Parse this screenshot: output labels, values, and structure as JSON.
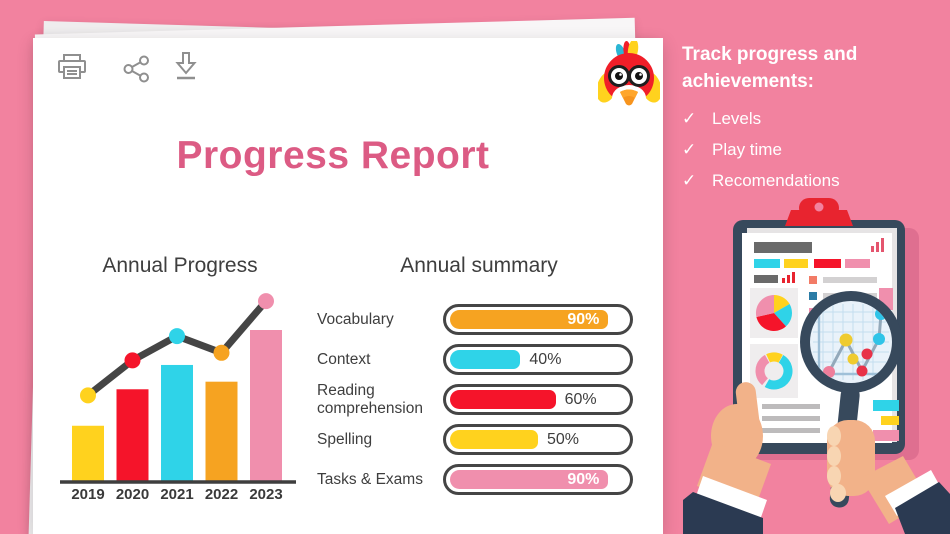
{
  "window": {
    "bg": "#F2829F",
    "paper": "#FFFFFF",
    "accent_pink": "#DC5B84",
    "ink": "#3E3E3E"
  },
  "toolbar": {
    "print_label": "print",
    "share_label": "share",
    "download_label": "download"
  },
  "report": {
    "title": "Progress Report"
  },
  "sidebar": {
    "heading": "Track progress and achievements:",
    "check_glyph": "✓",
    "items": [
      {
        "label": "Levels"
      },
      {
        "label": "Play time"
      },
      {
        "label": "Recomendations"
      }
    ]
  },
  "chart_data": [
    {
      "type": "bar",
      "title": "Annual Progress",
      "categories": [
        "2019",
        "2020",
        "2021",
        "2022",
        "2023"
      ],
      "series": [
        {
          "name": "yearly result (bars)",
          "type": "bar",
          "values": [
            37,
            61,
            77,
            66,
            100
          ],
          "colors": [
            "#FFD21E",
            "#F5142A",
            "#2FD3E8",
            "#F6A321",
            "#F08FAD"
          ]
        },
        {
          "name": "trend (line with dots)",
          "type": "line",
          "values": [
            57,
            80,
            96,
            85,
            119
          ],
          "line_color": "#454545",
          "point_colors": [
            "#FFD21E",
            "#F5142A",
            "#2FD3E8",
            "#F6A321",
            "#F08FAD"
          ]
        }
      ],
      "ylim": [
        0,
        125
      ],
      "grid": false,
      "legend": "none",
      "xlabel": "",
      "ylabel": ""
    },
    {
      "type": "bar",
      "subtype": "horizontal",
      "title": "Annual summary",
      "categories": [
        "Vocabulary",
        "Context",
        "Reading comprehension",
        "Spelling",
        "Tasks & Exams"
      ],
      "values": [
        90,
        40,
        60,
        50,
        90
      ],
      "value_labels": [
        "90%",
        "40%",
        "60%",
        "50%",
        "90%"
      ],
      "colors": [
        "#F6A321",
        "#2FD3E8",
        "#F5142A",
        "#FFD21E",
        "#F08FAD"
      ],
      "label_inside": [
        true,
        false,
        false,
        false,
        true
      ],
      "xlim": [
        0,
        100
      ]
    }
  ]
}
